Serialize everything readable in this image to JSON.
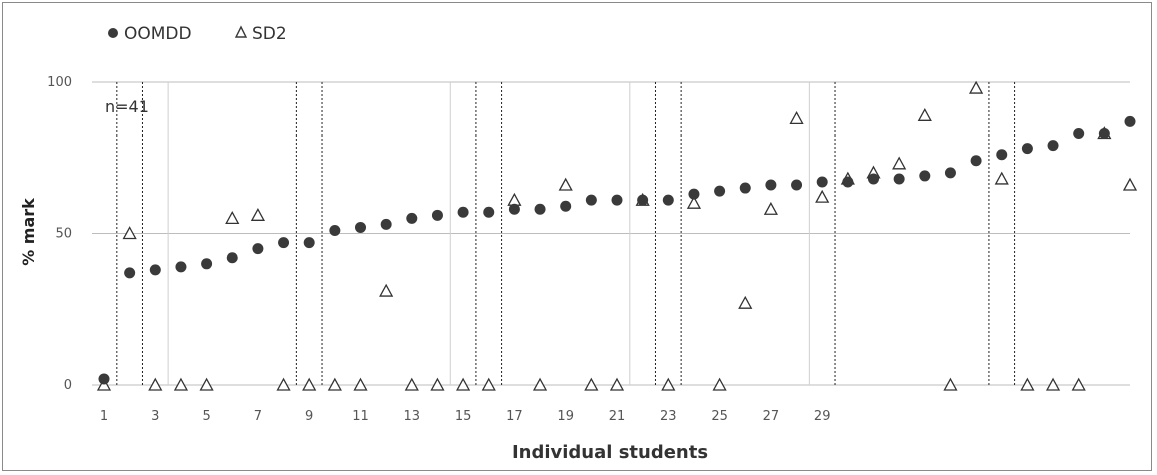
{
  "chart_data": {
    "type": "scatter",
    "xlabel": "Individual students",
    "ylabel": "% mark",
    "annotation": "n=41",
    "ylim": [
      0,
      100
    ],
    "yticks": [
      "0",
      "50",
      "100"
    ],
    "xticks": [
      "1",
      "3",
      "5",
      "7",
      "9",
      "11",
      "13",
      "15",
      "17",
      "19",
      "21",
      "23",
      "25",
      "27",
      "29"
    ],
    "legend": {
      "position": "top-left"
    },
    "series": [
      {
        "name": "OOMDD",
        "marker": "filled-circle",
        "color": "#3a3a3a",
        "values": [
          2,
          37,
          38,
          39,
          40,
          42,
          45,
          47,
          47,
          51,
          52,
          53,
          55,
          56,
          57,
          57,
          58,
          58,
          59,
          61,
          61,
          61,
          61,
          63,
          64,
          65,
          66,
          66,
          67,
          67,
          68,
          68,
          69,
          70,
          74,
          76,
          78,
          79,
          83,
          83,
          87
        ]
      },
      {
        "name": "SD2",
        "marker": "open-triangle",
        "color": "#3a3a3a",
        "values": [
          0,
          50,
          0,
          0,
          0,
          55,
          56,
          0,
          0,
          0,
          0,
          31,
          0,
          0,
          0,
          0,
          61,
          0,
          66,
          0,
          0,
          61,
          0,
          60,
          0,
          27,
          58,
          88,
          62,
          68,
          70,
          73,
          89,
          0,
          98,
          68,
          0,
          0,
          0,
          83,
          66
        ]
      }
    ]
  }
}
